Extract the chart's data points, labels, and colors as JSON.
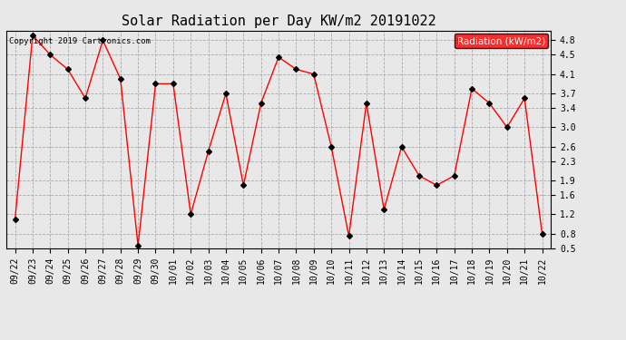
{
  "title": "Solar Radiation per Day KW/m2 20191022",
  "copyright": "Copyright 2019 Cartronics.com",
  "legend_label": "Radiation (kW/m2)",
  "dates": [
    "09/22",
    "09/23",
    "09/24",
    "09/25",
    "09/26",
    "09/27",
    "09/28",
    "09/29",
    "09/30",
    "10/01",
    "10/02",
    "10/03",
    "10/04",
    "10/05",
    "10/06",
    "10/07",
    "10/08",
    "10/09",
    "10/10",
    "10/11",
    "10/12",
    "10/13",
    "10/14",
    "10/15",
    "10/16",
    "10/17",
    "10/18",
    "10/19",
    "10/20",
    "10/21",
    "10/22"
  ],
  "values": [
    1.1,
    4.9,
    4.5,
    4.2,
    3.6,
    4.8,
    4.0,
    0.55,
    3.9,
    3.9,
    1.2,
    2.5,
    3.7,
    1.8,
    3.5,
    4.45,
    4.2,
    4.1,
    2.6,
    0.75,
    3.5,
    1.3,
    2.6,
    2.0,
    1.8,
    2.0,
    3.8,
    3.5,
    3.0,
    3.6,
    0.8
  ],
  "line_color": "red",
  "marker_color": "black",
  "marker_style": "D",
  "marker_size": 3,
  "ylim_min": 0.5,
  "ylim_max": 5.0,
  "yticks": [
    0.5,
    0.8,
    1.2,
    1.6,
    1.9,
    2.3,
    2.6,
    3.0,
    3.4,
    3.7,
    4.1,
    4.5,
    4.8
  ],
  "ytick_labels": [
    "0.5",
    "0.8",
    "1.2",
    "1.6",
    "1.9",
    "2.3",
    "2.6",
    "3.0",
    "3.4",
    "3.7",
    "4.1",
    "4.5",
    "4.8"
  ],
  "grid_color": "#aaaaaa",
  "grid_style": "--",
  "bg_color": "#e8e8e8",
  "title_fontsize": 11,
  "tick_fontsize": 7,
  "copyright_fontsize": 6.5,
  "legend_bg": "red",
  "legend_text_color": "white",
  "legend_fontsize": 7.5
}
